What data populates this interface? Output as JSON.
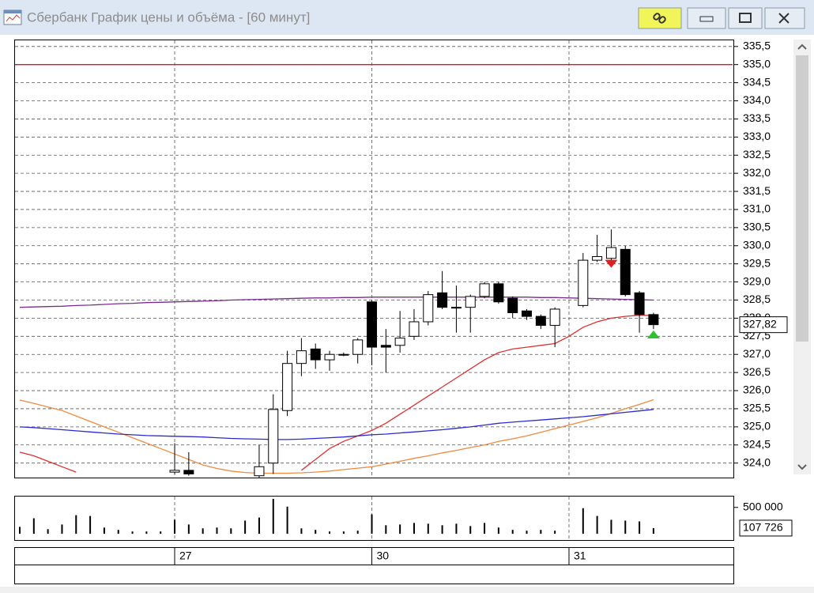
{
  "window": {
    "title": "Сбербанк График цены и объёма - [60 минут]"
  },
  "chart_data": {
    "type": "candlestick",
    "up_color": "#ffffff",
    "down_color": "#000000",
    "grid": true,
    "ylim": [
      323.6,
      335.67
    ],
    "yticks": [
      {
        "value": 324.0,
        "label": "324,0"
      },
      {
        "value": 324.5,
        "label": "324,5"
      },
      {
        "value": 325.0,
        "label": "325,0"
      },
      {
        "value": 325.5,
        "label": "325,5"
      },
      {
        "value": 326.0,
        "label": "326,0"
      },
      {
        "value": 326.5,
        "label": "326,5"
      },
      {
        "value": 327.0,
        "label": "327,0"
      },
      {
        "value": 327.5,
        "label": "327,5"
      },
      {
        "value": 328.0,
        "label": "328,0"
      },
      {
        "value": 328.5,
        "label": "328,5"
      },
      {
        "value": 329.0,
        "label": "329,0"
      },
      {
        "value": 329.5,
        "label": "329,5"
      },
      {
        "value": 330.0,
        "label": "330,0"
      },
      {
        "value": 330.5,
        "label": "330,5"
      },
      {
        "value": 331.0,
        "label": "331,0"
      },
      {
        "value": 331.5,
        "label": "331,5"
      },
      {
        "value": 332.0,
        "label": "332,0"
      },
      {
        "value": 332.5,
        "label": "332,5"
      },
      {
        "value": 333.0,
        "label": "333,0"
      },
      {
        "value": 333.5,
        "label": "333,5"
      },
      {
        "value": 334.0,
        "label": "334,0"
      },
      {
        "value": 334.5,
        "label": "334,5"
      },
      {
        "value": 335.0,
        "label": "335,0"
      },
      {
        "value": 335.5,
        "label": "335,5"
      }
    ],
    "xticks": [
      {
        "value": 11,
        "label": "27"
      },
      {
        "value": 25,
        "label": "30"
      },
      {
        "value": 39,
        "label": "31"
      }
    ],
    "open": [
      null,
      null,
      null,
      null,
      null,
      null,
      null,
      null,
      null,
      null,
      null,
      323.75,
      323.8,
      null,
      null,
      null,
      null,
      323.65,
      324.0,
      325.45,
      326.75,
      327.15,
      326.85,
      327.0,
      327.0,
      328.45,
      327.25,
      327.25,
      327.5,
      327.9,
      328.7,
      328.3,
      328.3,
      328.6,
      328.95,
      328.55,
      328.2,
      328.05,
      327.8,
      null,
      328.35,
      329.6,
      329.65,
      329.9,
      328.7,
      328.1
    ],
    "high": [
      null,
      null,
      null,
      null,
      null,
      null,
      null,
      null,
      null,
      null,
      null,
      324.55,
      324.3,
      null,
      null,
      null,
      null,
      324.5,
      325.9,
      327.1,
      327.45,
      327.3,
      327.1,
      327.05,
      327.45,
      328.5,
      327.7,
      328.2,
      328.25,
      328.75,
      329.3,
      328.9,
      328.65,
      329.0,
      329.0,
      328.6,
      328.25,
      328.1,
      328.3,
      null,
      329.8,
      330.3,
      330.45,
      330.0,
      328.75,
      328.15
    ],
    "low": [
      null,
      null,
      null,
      null,
      null,
      null,
      null,
      null,
      null,
      null,
      null,
      323.7,
      323.65,
      null,
      null,
      null,
      null,
      323.6,
      323.7,
      325.3,
      326.4,
      326.6,
      326.55,
      326.95,
      326.75,
      326.7,
      326.5,
      327.05,
      327.4,
      327.8,
      328.25,
      327.6,
      327.6,
      328.55,
      328.4,
      328.0,
      327.95,
      327.7,
      327.2,
      null,
      328.3,
      329.55,
      329.6,
      328.6,
      327.6,
      327.7
    ],
    "close": [
      null,
      null,
      null,
      null,
      null,
      null,
      null,
      null,
      null,
      null,
      null,
      323.8,
      323.7,
      null,
      null,
      null,
      null,
      323.9,
      325.48,
      326.75,
      327.1,
      326.85,
      327.0,
      327.0,
      327.4,
      327.2,
      327.2,
      327.45,
      327.9,
      328.65,
      328.3,
      328.3,
      328.6,
      328.95,
      328.45,
      328.15,
      328.05,
      327.8,
      328.25,
      null,
      329.6,
      329.7,
      329.95,
      328.65,
      328.1,
      327.82
    ],
    "overlays": [
      {
        "color": "#7b2d8e",
        "values": [
          328.3,
          328.31,
          328.32,
          328.33,
          328.35,
          328.36,
          328.38,
          328.4,
          328.41,
          328.43,
          328.44,
          328.45,
          328.46,
          328.47,
          328.48,
          328.5,
          328.51,
          328.52,
          328.53,
          328.54,
          328.55,
          328.56,
          328.56,
          328.57,
          328.57,
          328.58,
          328.58,
          328.58,
          328.58,
          328.58,
          328.58,
          328.58,
          328.58,
          328.58,
          328.58,
          328.58,
          328.58,
          328.57,
          328.57,
          328.56,
          328.55,
          328.54,
          328.53,
          328.52,
          328.51,
          328.5
        ]
      },
      {
        "color": "#e03030",
        "values": [
          324.3,
          324.2,
          324.05,
          323.9,
          323.75,
          null,
          null,
          null,
          null,
          null,
          null,
          null,
          null,
          null,
          null,
          null,
          null,
          null,
          null,
          null,
          323.8,
          324.1,
          324.4,
          324.6,
          324.75,
          324.9,
          325.1,
          325.35,
          325.6,
          325.85,
          326.1,
          326.35,
          326.6,
          326.85,
          327.05,
          327.15,
          327.2,
          327.25,
          327.3,
          327.5,
          327.75,
          327.9,
          328.0,
          328.05,
          328.08,
          328.07
        ]
      },
      {
        "color": "#f08a40",
        "values": [
          325.74,
          325.65,
          325.55,
          325.45,
          325.3,
          325.15,
          325.0,
          324.85,
          324.7,
          324.55,
          324.4,
          324.25,
          324.1,
          323.95,
          323.85,
          323.78,
          323.74,
          323.72,
          323.72,
          323.72,
          323.73,
          323.75,
          323.78,
          323.82,
          323.86,
          323.9,
          323.97,
          324.05,
          324.13,
          324.2,
          324.28,
          324.35,
          324.43,
          324.5,
          324.6,
          324.67,
          324.75,
          324.85,
          324.95,
          325.05,
          325.15,
          325.25,
          325.37,
          325.5,
          325.62,
          325.75
        ]
      },
      {
        "color": "#2a2ad0",
        "values": [
          325.0,
          324.98,
          324.95,
          324.92,
          324.89,
          324.86,
          324.83,
          324.8,
          324.78,
          324.76,
          324.75,
          324.74,
          324.73,
          324.72,
          324.7,
          324.68,
          324.67,
          324.66,
          324.65,
          324.65,
          324.66,
          324.68,
          324.7,
          324.72,
          324.75,
          324.78,
          324.8,
          324.83,
          324.86,
          324.89,
          324.92,
          324.96,
          325.0,
          325.05,
          325.1,
          325.13,
          325.16,
          325.19,
          325.22,
          325.25,
          325.28,
          325.32,
          325.36,
          325.4,
          325.44,
          325.48
        ]
      }
    ],
    "hline": {
      "value": 335.0,
      "color": "#d02020"
    },
    "signals": [
      {
        "index": 42,
        "value": 329.5,
        "direction": "down",
        "color": "#e02020"
      },
      {
        "index": 45,
        "value": 327.55,
        "direction": "up",
        "color": "#30c030"
      }
    ],
    "last_price": {
      "value": 327.82,
      "label": "327,82"
    },
    "volume": {
      "color": "#000000",
      "ylim": [
        -118000,
        706000
      ],
      "yticks": [
        {
          "value": 500000,
          "label": "500 000"
        }
      ],
      "values": [
        132000,
        294000,
        88000,
        176000,
        353000,
        338000,
        118000,
        74000,
        44000,
        44000,
        44000,
        265000,
        176000,
        103000,
        118000,
        103000,
        250000,
        309000,
        662000,
        515000,
        103000,
        74000,
        44000,
        44000,
        59000,
        368000,
        162000,
        176000,
        206000,
        191000,
        162000,
        191000,
        147000,
        206000,
        118000,
        74000,
        59000,
        74000,
        59000,
        null,
        485000,
        338000,
        265000,
        250000,
        235000,
        107726
      ],
      "last": {
        "value": 107726,
        "label": "107 726"
      }
    }
  }
}
